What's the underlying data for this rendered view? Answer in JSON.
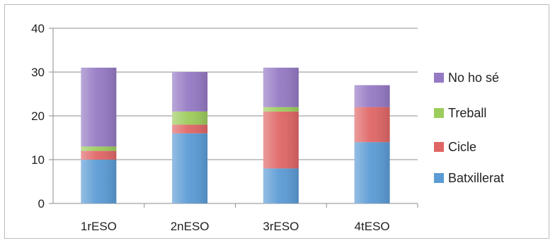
{
  "chart_data": {
    "type": "bar",
    "stacked": true,
    "categories": [
      "1rESO",
      "2nESO",
      "3rESO",
      "4tESO"
    ],
    "series": [
      {
        "name": "Batxillerat",
        "values": [
          10,
          16,
          8,
          14
        ],
        "color": "#5b9bd5"
      },
      {
        "name": "Cicle",
        "values": [
          2,
          2,
          13,
          8
        ],
        "color": "#e06666"
      },
      {
        "name": "Treball",
        "values": [
          1,
          3,
          1,
          0
        ],
        "color": "#9ccc5c"
      },
      {
        "name": "No ho sé",
        "values": [
          18,
          9,
          9,
          5
        ],
        "color": "#9579c4"
      }
    ],
    "ylim": [
      0,
      40
    ],
    "yticks": [
      "0",
      "10",
      "20",
      "30",
      "40"
    ],
    "grid": true,
    "legend": "right",
    "title": "",
    "xlabel": "",
    "ylabel": ""
  }
}
